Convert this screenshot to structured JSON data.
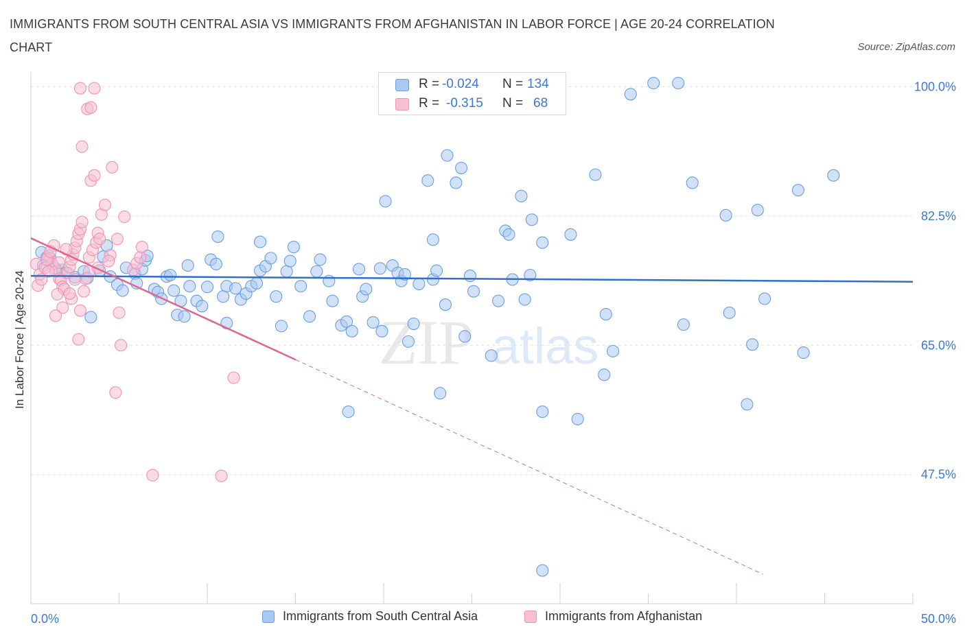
{
  "title": "IMMIGRANTS FROM SOUTH CENTRAL ASIA VS IMMIGRANTS FROM AFGHANISTAN IN LABOR FORCE | AGE 20-24 CORRELATION CHART",
  "source": "Source: ZipAtlas.com",
  "watermark": {
    "zip": "ZIP",
    "atlas": "atlas"
  },
  "colors": {
    "blue_fill": "#a9c8f3",
    "blue_stroke": "#6a9ee0",
    "blue_line": "#2c6fce",
    "pink_fill": "#f7bfd0",
    "pink_stroke": "#ee93b0",
    "pink_line": "#e0668f",
    "axis_text": "#3b78d4",
    "grid": "#e2e2e2"
  },
  "stats_legend": {
    "rows": [
      {
        "series": "blue",
        "r_label": "R =",
        "r_value": "-0.024",
        "n_label": "N =",
        "n_value": "134"
      },
      {
        "series": "pink",
        "r_label": "R =",
        "r_value": "-0.315",
        "n_label": "N =",
        "n_value": "68"
      }
    ]
  },
  "chart_data": {
    "type": "scatter",
    "xlabel": "",
    "ylabel": "In Labor Force | Age 20-24",
    "xlim": [
      0,
      50
    ],
    "ylim": [
      30,
      102
    ],
    "x_tick_labels": [
      {
        "value": 0,
        "label": "0.0%"
      },
      {
        "value": 50,
        "label": "50.0%"
      }
    ],
    "y_tick_labels": [
      {
        "value": 100,
        "label": "100.0%"
      },
      {
        "value": 82.5,
        "label": "82.5%"
      },
      {
        "value": 65,
        "label": "65.0%"
      },
      {
        "value": 47.5,
        "label": "47.5%"
      }
    ],
    "grid": true,
    "legend_position": "bottom",
    "series": [
      {
        "name": "Immigrants from South Central Asia",
        "color": "blue",
        "trend": {
          "x": [
            0,
            50
          ],
          "y": [
            74.4,
            73.6
          ],
          "dashed_from": null
        },
        "points": [
          [
            0.6,
            77.6
          ],
          [
            0.9,
            76.9
          ],
          [
            1.1,
            76.8
          ],
          [
            0.7,
            75.8
          ],
          [
            1.4,
            75.4
          ],
          [
            1.8,
            75.2
          ],
          [
            2.0,
            74.8
          ],
          [
            2.5,
            74.2
          ],
          [
            3.0,
            75.0
          ],
          [
            3.2,
            74.1
          ],
          [
            3.4,
            68.8
          ],
          [
            3.9,
            75.1
          ],
          [
            4.1,
            77.0
          ],
          [
            4.5,
            74.3
          ],
          [
            4.3,
            78.5
          ],
          [
            4.9,
            73.2
          ],
          [
            5.2,
            72.4
          ],
          [
            5.4,
            75.5
          ],
          [
            5.9,
            74.7
          ],
          [
            6.0,
            73.4
          ],
          [
            6.3,
            75.3
          ],
          [
            6.5,
            76.5
          ],
          [
            6.6,
            77.1
          ],
          [
            7.0,
            72.6
          ],
          [
            7.2,
            72.2
          ],
          [
            7.4,
            71.3
          ],
          [
            7.7,
            74.3
          ],
          [
            7.9,
            74.5
          ],
          [
            8.1,
            72.4
          ],
          [
            8.3,
            69.1
          ],
          [
            8.5,
            71.0
          ],
          [
            8.7,
            68.9
          ],
          [
            8.9,
            75.8
          ],
          [
            9.0,
            73.0
          ],
          [
            9.4,
            71.0
          ],
          [
            9.7,
            70.3
          ],
          [
            10.0,
            72.9
          ],
          [
            10.2,
            76.6
          ],
          [
            10.5,
            76.0
          ],
          [
            10.9,
            71.6
          ],
          [
            11.1,
            73.0
          ],
          [
            10.6,
            79.7
          ],
          [
            11.1,
            68.0
          ],
          [
            11.6,
            72.7
          ],
          [
            11.9,
            71.2
          ],
          [
            12.2,
            72.0
          ],
          [
            12.5,
            73.0
          ],
          [
            12.8,
            73.4
          ],
          [
            13.0,
            75.1
          ],
          [
            13.3,
            75.7
          ],
          [
            13.0,
            79.0
          ],
          [
            13.6,
            76.8
          ],
          [
            13.9,
            71.6
          ],
          [
            14.2,
            67.6
          ],
          [
            14.5,
            75.0
          ],
          [
            14.7,
            76.4
          ],
          [
            14.9,
            78.3
          ],
          [
            15.3,
            73.0
          ],
          [
            15.8,
            68.9
          ],
          [
            16.2,
            75.0
          ],
          [
            16.4,
            76.6
          ],
          [
            16.9,
            73.7
          ],
          [
            17.1,
            71.0
          ],
          [
            17.6,
            67.7
          ],
          [
            17.9,
            68.2
          ],
          [
            18.2,
            66.9
          ],
          [
            18.6,
            75.3
          ],
          [
            18.8,
            71.6
          ],
          [
            19.0,
            72.6
          ],
          [
            19.4,
            68.1
          ],
          [
            19.9,
            66.9
          ],
          [
            19.8,
            75.4
          ],
          [
            20.5,
            75.8
          ],
          [
            20.8,
            74.8
          ],
          [
            21.0,
            73.7
          ],
          [
            21.2,
            74.6
          ],
          [
            21.4,
            65.5
          ],
          [
            21.7,
            67.9
          ],
          [
            22.0,
            73.3
          ],
          [
            22.8,
            73.9
          ],
          [
            23.0,
            75.1
          ],
          [
            23.5,
            70.5
          ],
          [
            22.5,
            87.3
          ],
          [
            22.8,
            79.3
          ],
          [
            23.6,
            90.7
          ],
          [
            24.1,
            87.0
          ],
          [
            24.4,
            89.0
          ],
          [
            24.6,
            66.2
          ],
          [
            24.9,
            74.4
          ],
          [
            25.1,
            72.3
          ],
          [
            26.1,
            63.6
          ],
          [
            26.5,
            71.0
          ],
          [
            26.9,
            80.5
          ],
          [
            27.1,
            80.0
          ],
          [
            27.3,
            73.9
          ],
          [
            27.8,
            85.2
          ],
          [
            28.0,
            71.2
          ],
          [
            28.4,
            82.0
          ],
          [
            29.0,
            78.9
          ],
          [
            29.7,
            100.5
          ],
          [
            32.0,
            88.1
          ],
          [
            31.0,
            55.0
          ],
          [
            32.5,
            61.0
          ],
          [
            32.6,
            69.2
          ],
          [
            33.0,
            64.2
          ],
          [
            37.0,
            67.8
          ],
          [
            37.5,
            87.0
          ],
          [
            39.6,
            69.4
          ],
          [
            39.4,
            82.6
          ],
          [
            40.6,
            57.0
          ],
          [
            40.9,
            65.1
          ],
          [
            41.2,
            83.3
          ],
          [
            41.6,
            71.3
          ],
          [
            43.5,
            86.0
          ],
          [
            43.8,
            64.0
          ],
          [
            45.5,
            88.0
          ],
          [
            29.0,
            56.0
          ],
          [
            29.0,
            34.5
          ],
          [
            36.7,
            100.5
          ],
          [
            35.3,
            100.5
          ],
          [
            34.0,
            99.0
          ],
          [
            23.2,
            58.5
          ],
          [
            20.1,
            84.5
          ],
          [
            18.0,
            56.0
          ],
          [
            28.3,
            74.5
          ],
          [
            30.6,
            80.0
          ]
        ]
      },
      {
        "name": "Immigrants from Afghanistan",
        "color": "pink",
        "trend": {
          "x": [
            0,
            41.5
          ],
          "y": [
            79.5,
            34.0
          ],
          "dashed_from": 15.0
        },
        "points": [
          [
            0.3,
            76.0
          ],
          [
            0.5,
            74.6
          ],
          [
            0.8,
            75.5
          ],
          [
            1.0,
            77.1
          ],
          [
            1.2,
            76.0
          ],
          [
            1.4,
            75.0
          ],
          [
            1.6,
            74.0
          ],
          [
            1.7,
            73.8
          ],
          [
            1.8,
            72.9
          ],
          [
            1.9,
            72.6
          ],
          [
            2.1,
            74.8
          ],
          [
            2.2,
            75.6
          ],
          [
            2.3,
            76.6
          ],
          [
            2.4,
            77.3
          ],
          [
            2.5,
            78.2
          ],
          [
            2.6,
            79.1
          ],
          [
            2.7,
            80.1
          ],
          [
            2.8,
            80.7
          ],
          [
            2.9,
            81.7
          ],
          [
            1.5,
            71.9
          ],
          [
            1.8,
            70.1
          ],
          [
            2.3,
            71.3
          ],
          [
            2.8,
            69.7
          ],
          [
            3.0,
            72.3
          ],
          [
            3.1,
            74.0
          ],
          [
            3.3,
            76.9
          ],
          [
            3.5,
            77.9
          ],
          [
            3.7,
            78.9
          ],
          [
            3.8,
            80.2
          ],
          [
            3.9,
            79.4
          ],
          [
            4.0,
            82.7
          ],
          [
            4.2,
            84.0
          ],
          [
            3.4,
            87.3
          ],
          [
            3.6,
            88.0
          ],
          [
            2.9,
            91.9
          ],
          [
            3.2,
            97.0
          ],
          [
            3.4,
            97.2
          ],
          [
            2.8,
            99.8
          ],
          [
            3.6,
            99.8
          ],
          [
            4.6,
            89.1
          ],
          [
            5.3,
            82.4
          ],
          [
            5.0,
            69.4
          ],
          [
            5.1,
            65.0
          ],
          [
            5.8,
            75.2
          ],
          [
            6.0,
            76.1
          ],
          [
            6.2,
            76.9
          ],
          [
            6.3,
            78.3
          ],
          [
            4.8,
            58.6
          ],
          [
            6.9,
            47.4
          ],
          [
            10.8,
            47.3
          ],
          [
            11.5,
            60.6
          ],
          [
            4.5,
            77.2
          ],
          [
            4.9,
            79.4
          ],
          [
            1.0,
            75.0
          ],
          [
            1.3,
            78.5
          ],
          [
            0.4,
            73.1
          ],
          [
            0.6,
            73.9
          ],
          [
            0.9,
            76.6
          ],
          [
            1.1,
            77.7
          ],
          [
            1.6,
            76.2
          ],
          [
            2.0,
            78.0
          ],
          [
            2.2,
            72.0
          ],
          [
            2.5,
            73.9
          ],
          [
            3.3,
            75.0
          ],
          [
            3.8,
            75.5
          ],
          [
            4.4,
            76.4
          ],
          [
            1.4,
            69.0
          ],
          [
            2.7,
            65.8
          ]
        ]
      }
    ]
  },
  "legend_bottom": [
    {
      "series": "blue",
      "label": "Immigrants from South Central Asia"
    },
    {
      "series": "pink",
      "label": "Immigrants from Afghanistan"
    }
  ]
}
